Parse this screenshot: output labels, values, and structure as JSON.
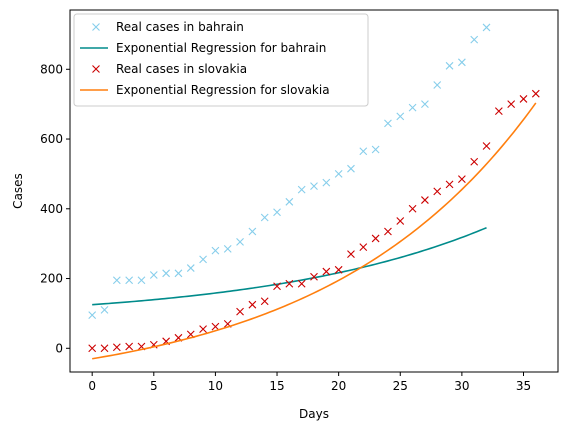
{
  "chart_data": {
    "type": "scatter",
    "title": "",
    "xlabel": "Days",
    "ylabel": "Cases",
    "xlim": [
      -1.8,
      37.8
    ],
    "ylim": [
      -68,
      970
    ],
    "xticks": [
      0,
      5,
      10,
      15,
      20,
      25,
      30,
      35
    ],
    "yticks": [
      0,
      200,
      400,
      600,
      800
    ],
    "grid": false,
    "legend_position": "top-left",
    "colors": {
      "bahrain_real": "#87ceeb",
      "bahrain_fit": "#008b8b",
      "slovakia_real": "#cc0000",
      "slovakia_fit": "#ff7f0e"
    },
    "series": [
      {
        "name": "Real cases in bahrain",
        "kind": "markers",
        "marker": "x",
        "color": "#87ceeb",
        "x": [
          0,
          1,
          2,
          3,
          4,
          5,
          6,
          7,
          8,
          9,
          10,
          11,
          12,
          13,
          14,
          15,
          16,
          17,
          18,
          19,
          20,
          21,
          22,
          23,
          24,
          25,
          26,
          27,
          28,
          29,
          30,
          31,
          32
        ],
        "y": [
          95,
          110,
          195,
          195,
          195,
          210,
          215,
          215,
          230,
          255,
          280,
          285,
          305,
          335,
          375,
          390,
          420,
          455,
          465,
          475,
          500,
          515,
          565,
          570,
          645,
          665,
          690,
          700,
          755,
          810,
          820,
          885,
          920
        ]
      },
      {
        "name": "Exponential Regression for bahrain",
        "kind": "line",
        "color": "#008b8b",
        "fit": {
          "a": 80,
          "b": 45,
          "c": 0.0555
        },
        "x_range": [
          0,
          32
        ]
      },
      {
        "name": "Real cases in slovakia",
        "kind": "markers",
        "marker": "x",
        "color": "#cc0000",
        "x": [
          0,
          1,
          2,
          3,
          4,
          5,
          6,
          7,
          8,
          9,
          10,
          11,
          12,
          13,
          14,
          15,
          16,
          17,
          18,
          19,
          20,
          21,
          22,
          23,
          24,
          25,
          26,
          27,
          28,
          29,
          30,
          31,
          32,
          33,
          34,
          35,
          36
        ],
        "y": [
          0,
          0,
          3,
          5,
          5,
          10,
          20,
          30,
          40,
          55,
          62,
          70,
          105,
          125,
          135,
          178,
          185,
          185,
          205,
          220,
          225,
          270,
          290,
          315,
          335,
          365,
          400,
          425,
          450,
          470,
          485,
          535,
          580,
          680,
          700,
          715,
          730
        ]
      },
      {
        "name": "Exponential Regression for slovakia",
        "kind": "line",
        "color": "#ff7f0e",
        "fit": {
          "a": -130,
          "b": 100,
          "c": 0.0589
        },
        "x_range": [
          0,
          36
        ]
      }
    ]
  }
}
